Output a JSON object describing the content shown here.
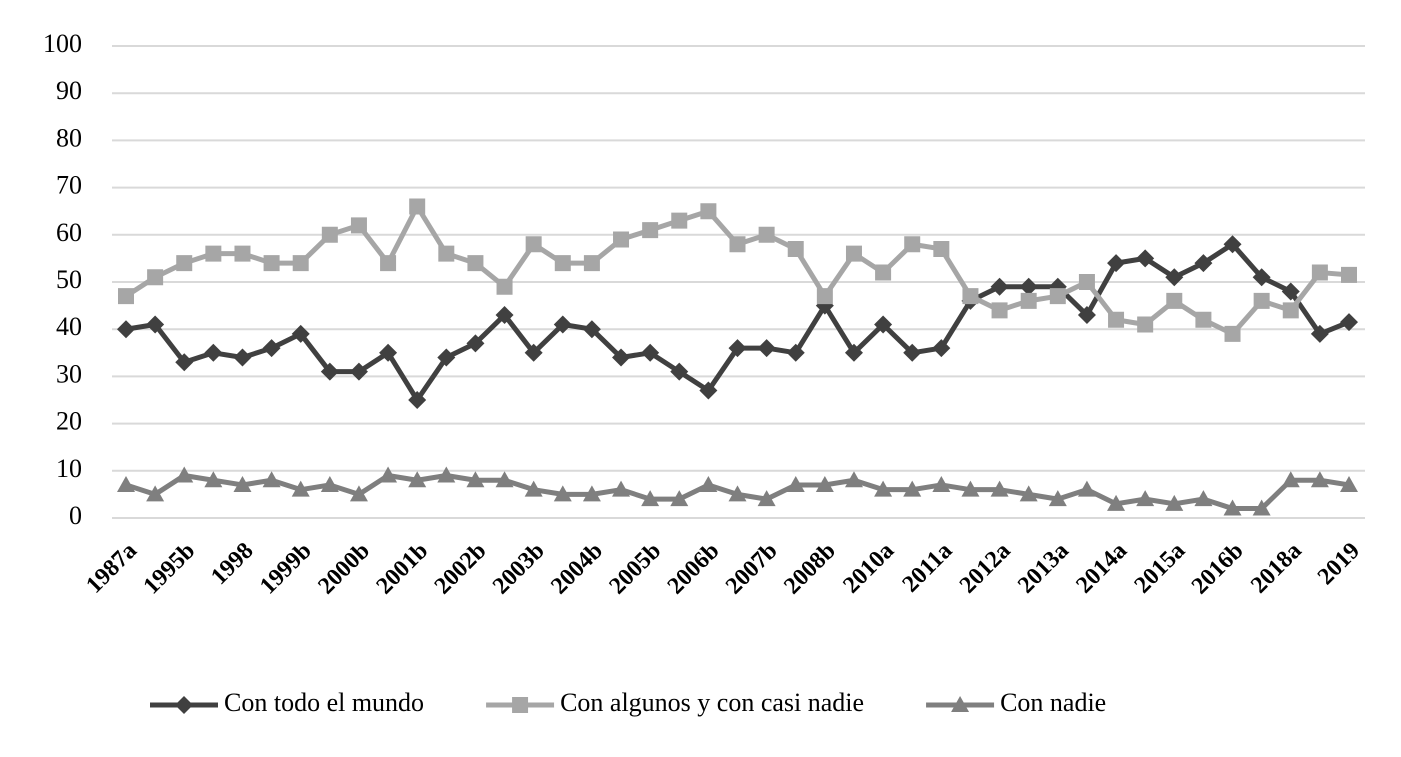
{
  "chart_data": {
    "type": "line",
    "categories": [
      "1987a",
      null,
      "1995b",
      null,
      "1998",
      null,
      "1999b",
      null,
      "2000b",
      null,
      "2001b",
      null,
      "2002b",
      null,
      "2003b",
      null,
      "2004b",
      null,
      "2005b",
      null,
      "2006b",
      null,
      "2007b",
      null,
      "2008b",
      null,
      "2010a",
      null,
      "2011a",
      null,
      "2012a",
      null,
      "2013a",
      null,
      "2014a",
      null,
      "2015a",
      null,
      "2016b",
      null,
      "2018a",
      null,
      "2019"
    ],
    "series": [
      {
        "name": "Con todo el mundo",
        "color": "#404040",
        "marker": "diamond",
        "values": [
          40,
          41,
          33,
          35,
          34,
          36,
          39,
          31,
          31,
          35,
          25,
          34,
          37,
          43,
          35,
          41,
          40,
          34,
          35,
          31,
          27,
          36,
          36,
          35,
          45,
          35,
          41,
          35,
          36,
          46,
          49,
          49,
          49,
          43,
          54,
          55,
          51,
          54,
          58,
          51,
          48,
          39,
          41.5
        ]
      },
      {
        "name": "Con algunos y con casi nadie",
        "color": "#a6a6a6",
        "marker": "square",
        "values": [
          47,
          51,
          54,
          56,
          56,
          54,
          54,
          60,
          62,
          54,
          66,
          56,
          54,
          49,
          58,
          54,
          54,
          59,
          61,
          63,
          65,
          58,
          60,
          57,
          47,
          56,
          52,
          58,
          57,
          47,
          44,
          46,
          47,
          50,
          42,
          41,
          46,
          42,
          39,
          46,
          44,
          52,
          51.5
        ]
      },
      {
        "name": "Con nadie",
        "color": "#7f7f7f",
        "marker": "triangle",
        "values": [
          7,
          5,
          9,
          8,
          7,
          8,
          6,
          7,
          5,
          9,
          8,
          9,
          8,
          8,
          6,
          5,
          5,
          6,
          4,
          4,
          7,
          5,
          4,
          7,
          7,
          8,
          6,
          6,
          7,
          6,
          6,
          5,
          4,
          6,
          3,
          4,
          3,
          4,
          2,
          2,
          8,
          8,
          7
        ]
      }
    ],
    "ylim": [
      0,
      100
    ],
    "yticks": [
      0,
      10,
      20,
      30,
      40,
      50,
      60,
      70,
      80,
      90,
      100
    ],
    "grid": true,
    "legend": "bottom"
  }
}
